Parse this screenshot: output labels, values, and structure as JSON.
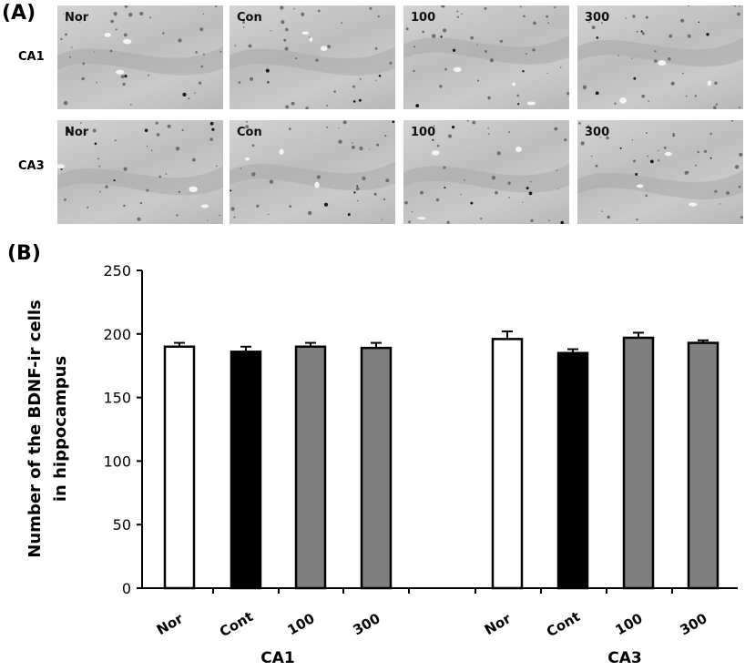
{
  "panel_a": {
    "label": "(A)",
    "row_labels": [
      "CA1",
      "CA3"
    ],
    "groups": [
      "Nor",
      "Con",
      "100",
      "300"
    ]
  },
  "panel_b": {
    "label": "(B)"
  },
  "chart_data": {
    "type": "bar",
    "title": "",
    "xlabel": "",
    "ylabel": "Number of the BDNF-ir cells in hippocampus",
    "ylabel_lines": [
      "Number of the BDNF-ir cells",
      "in hippocampus"
    ],
    "ylim": [
      0,
      250
    ],
    "yticks": [
      0,
      50,
      100,
      150,
      200,
      250
    ],
    "grid": false,
    "categories": [
      "Nor",
      "Cont",
      "100",
      "300"
    ],
    "regions": [
      {
        "name": "CA1",
        "values": [
          190,
          186,
          190,
          189
        ],
        "errors": [
          3,
          4,
          3,
          4
        ]
      },
      {
        "name": "CA3",
        "values": [
          196,
          185,
          197,
          193
        ],
        "errors": [
          6,
          3,
          4,
          2
        ]
      }
    ],
    "bar_colors": [
      "#ffffff",
      "#000000",
      "#7f7f7f",
      "#7f7f7f"
    ]
  }
}
